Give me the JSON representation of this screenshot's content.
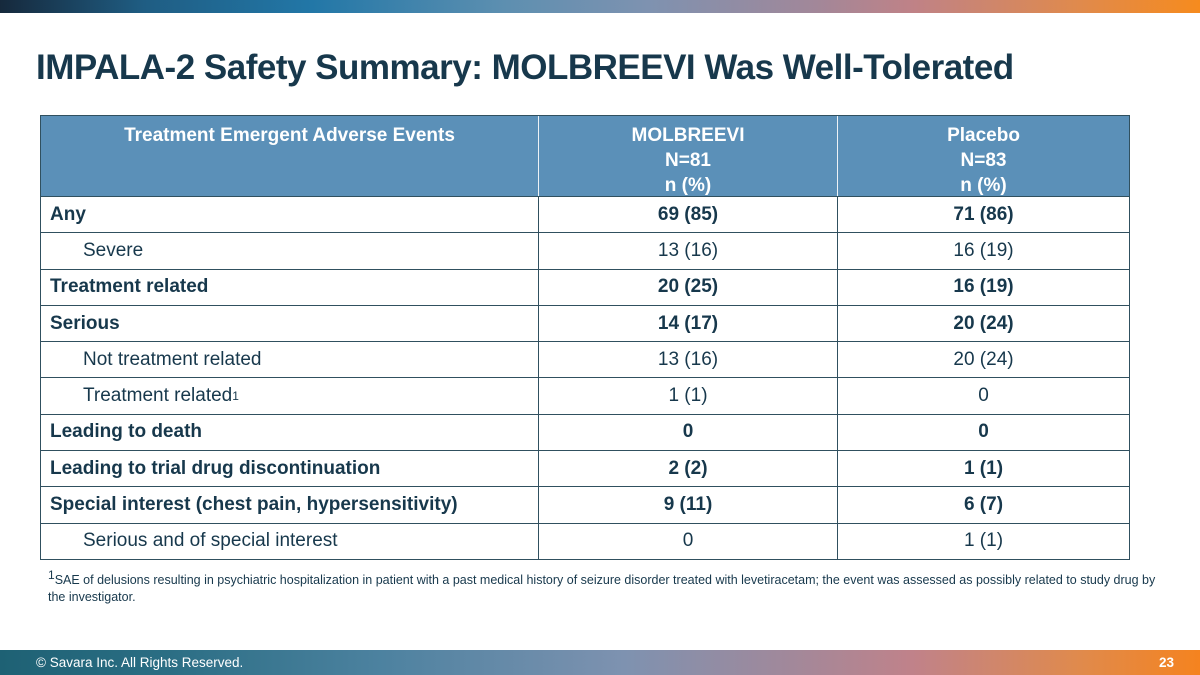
{
  "slide": {
    "title": "IMPALA-2 Safety Summary: MOLBREEVI Was Well-Tolerated",
    "copyright": "© Savara Inc. All Rights Reserved.",
    "page_number": "23"
  },
  "table": {
    "header": {
      "col1": "Treatment Emergent Adverse Events",
      "col2_line1": "MOLBREEVI",
      "col2_line2": "N=81",
      "col2_line3": "n (%)",
      "col3_line1": "Placebo",
      "col3_line2": "N=83",
      "col3_line3": "n (%)"
    },
    "rows": [
      {
        "label": "Any",
        "sup": "",
        "molbreevi": "69 (85)",
        "placebo": "71 (86)",
        "bold": true,
        "indent": false
      },
      {
        "label": "Severe",
        "sup": "",
        "molbreevi": "13 (16)",
        "placebo": "16 (19)",
        "bold": false,
        "indent": true
      },
      {
        "label": "Treatment related",
        "sup": "",
        "molbreevi": "20 (25)",
        "placebo": "16 (19)",
        "bold": true,
        "indent": false
      },
      {
        "label": "Serious",
        "sup": "",
        "molbreevi": "14 (17)",
        "placebo": "20 (24)",
        "bold": true,
        "indent": false
      },
      {
        "label": "Not treatment related",
        "sup": "",
        "molbreevi": "13 (16)",
        "placebo": "20 (24)",
        "bold": false,
        "indent": true
      },
      {
        "label": "Treatment related",
        "sup": "1",
        "molbreevi": "1 (1)",
        "placebo": "0",
        "bold": false,
        "indent": true
      },
      {
        "label": "Leading to death",
        "sup": "",
        "molbreevi": "0",
        "placebo": "0",
        "bold": true,
        "indent": false
      },
      {
        "label": "Leading to trial drug discontinuation",
        "sup": "",
        "molbreevi": "2 (2)",
        "placebo": "1 (1)",
        "bold": true,
        "indent": false
      },
      {
        "label": "Special interest (chest pain, hypersensitivity)",
        "sup": "",
        "molbreevi": "9 (11)",
        "placebo": "6 (7)",
        "bold": true,
        "indent": false
      },
      {
        "label": "Serious and of special interest",
        "sup": "",
        "molbreevi": "0",
        "placebo": "1 (1)",
        "bold": false,
        "indent": true
      }
    ]
  },
  "footnote": {
    "sup": "1",
    "text": "SAE of delusions resulting in psychiatric hospitalization in patient with a past medical history of seizure disorder treated with levetiracetam; the event was assessed as possibly related to study drug by the investigator."
  },
  "colors": {
    "header_bg": "#5B90B8",
    "table_border": "#30505F",
    "text": "#17384C",
    "bar_navy": "#16293C",
    "bar_blue": "#2277A7",
    "bar_steel": "#7E92B0",
    "bar_rose": "#BF8287",
    "bar_orange": "#F5831F",
    "footer_teal": "#1E6174"
  }
}
